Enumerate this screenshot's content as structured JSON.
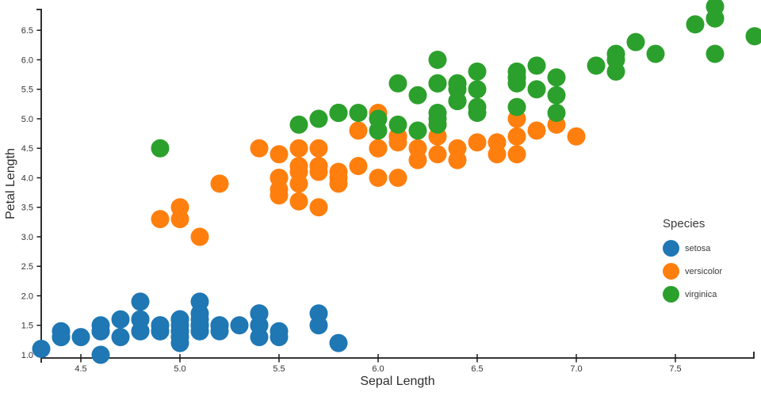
{
  "colors": {
    "background": "#ffffff",
    "axis_line": "#1a1a1a",
    "tick_label": "#333333",
    "axis_title": "#2d2d2d",
    "legend_text": "#3a3a3a"
  },
  "chart_data": {
    "type": "scatter",
    "title": "",
    "xlabel": "Sepal Length",
    "ylabel": "Petal Length",
    "xlim": [
      4.3,
      7.9
    ],
    "ylim": [
      1.0,
      6.9
    ],
    "grid": false,
    "marker_diameter_px": 23,
    "x_ticks": [
      4.5,
      5.0,
      5.5,
      6.0,
      6.5,
      7.0,
      7.5
    ],
    "x_tick_labels": [
      "4.5",
      "5.0",
      "5.5",
      "6.0",
      "6.5",
      "7.0",
      "7.5"
    ],
    "y_ticks": [
      1.0,
      1.5,
      2.0,
      2.5,
      3.0,
      3.5,
      4.0,
      4.5,
      5.0,
      5.5,
      6.0,
      6.5
    ],
    "y_tick_labels": [
      "1.0",
      "1.5",
      "2.0",
      "2.5",
      "3.0",
      "3.5",
      "4.0",
      "4.5",
      "5.0",
      "5.5",
      "6.0",
      "6.5"
    ],
    "legend": {
      "title": "Species",
      "position": "right-inside",
      "entries": [
        "setosa",
        "versicolor",
        "virginica"
      ]
    },
    "series": [
      {
        "name": "setosa",
        "color": "#1f77b4",
        "points": [
          [
            5.1,
            1.4
          ],
          [
            4.9,
            1.4
          ],
          [
            4.7,
            1.3
          ],
          [
            4.6,
            1.5
          ],
          [
            5.0,
            1.4
          ],
          [
            5.4,
            1.7
          ],
          [
            4.6,
            1.4
          ],
          [
            5.0,
            1.5
          ],
          [
            4.4,
            1.4
          ],
          [
            4.9,
            1.5
          ],
          [
            5.4,
            1.5
          ],
          [
            4.8,
            1.6
          ],
          [
            4.8,
            1.4
          ],
          [
            4.3,
            1.1
          ],
          [
            5.8,
            1.2
          ],
          [
            5.7,
            1.5
          ],
          [
            5.4,
            1.3
          ],
          [
            5.1,
            1.4
          ],
          [
            5.7,
            1.7
          ],
          [
            5.1,
            1.5
          ],
          [
            5.4,
            1.7
          ],
          [
            5.1,
            1.5
          ],
          [
            4.6,
            1.0
          ],
          [
            5.1,
            1.7
          ],
          [
            4.8,
            1.9
          ],
          [
            5.0,
            1.6
          ],
          [
            5.0,
            1.6
          ],
          [
            5.2,
            1.5
          ],
          [
            5.2,
            1.4
          ],
          [
            4.7,
            1.6
          ],
          [
            4.8,
            1.6
          ],
          [
            5.4,
            1.5
          ],
          [
            5.2,
            1.5
          ],
          [
            5.5,
            1.4
          ],
          [
            4.9,
            1.5
          ],
          [
            5.0,
            1.2
          ],
          [
            5.5,
            1.3
          ],
          [
            4.9,
            1.4
          ],
          [
            4.4,
            1.3
          ],
          [
            5.1,
            1.5
          ],
          [
            5.0,
            1.3
          ],
          [
            4.5,
            1.3
          ],
          [
            4.4,
            1.3
          ],
          [
            5.0,
            1.6
          ],
          [
            5.1,
            1.9
          ],
          [
            4.8,
            1.4
          ],
          [
            5.1,
            1.6
          ],
          [
            4.6,
            1.4
          ],
          [
            5.3,
            1.5
          ],
          [
            5.0,
            1.4
          ]
        ]
      },
      {
        "name": "versicolor",
        "color": "#ff7f0e",
        "points": [
          [
            7.0,
            4.7
          ],
          [
            6.4,
            4.5
          ],
          [
            6.9,
            4.9
          ],
          [
            5.5,
            4.0
          ],
          [
            6.5,
            4.6
          ],
          [
            5.7,
            4.5
          ],
          [
            6.3,
            4.7
          ],
          [
            4.9,
            3.3
          ],
          [
            6.6,
            4.6
          ],
          [
            5.2,
            3.9
          ],
          [
            5.0,
            3.5
          ],
          [
            5.9,
            4.2
          ],
          [
            6.0,
            4.0
          ],
          [
            6.1,
            4.7
          ],
          [
            5.6,
            3.6
          ],
          [
            6.7,
            4.4
          ],
          [
            5.6,
            4.5
          ],
          [
            5.8,
            4.1
          ],
          [
            6.2,
            4.5
          ],
          [
            5.6,
            3.9
          ],
          [
            5.9,
            4.8
          ],
          [
            6.1,
            4.0
          ],
          [
            6.3,
            4.9
          ],
          [
            6.1,
            4.7
          ],
          [
            6.4,
            4.3
          ],
          [
            6.6,
            4.4
          ],
          [
            6.8,
            4.8
          ],
          [
            6.7,
            5.0
          ],
          [
            6.0,
            4.5
          ],
          [
            5.7,
            3.5
          ],
          [
            5.5,
            3.8
          ],
          [
            5.5,
            3.7
          ],
          [
            5.8,
            3.9
          ],
          [
            6.0,
            5.1
          ],
          [
            5.4,
            4.5
          ],
          [
            6.0,
            4.5
          ],
          [
            6.7,
            4.7
          ],
          [
            6.3,
            4.4
          ],
          [
            5.6,
            4.1
          ],
          [
            5.5,
            4.0
          ],
          [
            5.5,
            4.4
          ],
          [
            6.1,
            4.6
          ],
          [
            5.8,
            4.0
          ],
          [
            5.0,
            3.3
          ],
          [
            5.6,
            4.2
          ],
          [
            5.7,
            4.2
          ],
          [
            5.7,
            4.2
          ],
          [
            6.2,
            4.3
          ],
          [
            5.1,
            3.0
          ],
          [
            5.7,
            4.1
          ]
        ]
      },
      {
        "name": "virginica",
        "color": "#2ca02c",
        "points": [
          [
            6.3,
            6.0
          ],
          [
            5.8,
            5.1
          ],
          [
            7.1,
            5.9
          ],
          [
            6.3,
            5.6
          ],
          [
            6.5,
            5.8
          ],
          [
            7.6,
            6.6
          ],
          [
            4.9,
            4.5
          ],
          [
            7.3,
            6.3
          ],
          [
            6.7,
            5.8
          ],
          [
            7.2,
            6.1
          ],
          [
            6.5,
            5.1
          ],
          [
            6.4,
            5.3
          ],
          [
            6.8,
            5.5
          ],
          [
            5.7,
            5.0
          ],
          [
            5.8,
            5.1
          ],
          [
            6.4,
            5.3
          ],
          [
            6.5,
            5.5
          ],
          [
            7.7,
            6.7
          ],
          [
            7.7,
            6.9
          ],
          [
            6.0,
            5.0
          ],
          [
            6.9,
            5.7
          ],
          [
            5.6,
            4.9
          ],
          [
            7.7,
            6.7
          ],
          [
            6.3,
            4.9
          ],
          [
            6.7,
            5.7
          ],
          [
            7.2,
            6.0
          ],
          [
            6.2,
            4.8
          ],
          [
            6.1,
            4.9
          ],
          [
            6.4,
            5.6
          ],
          [
            7.2,
            5.8
          ],
          [
            7.4,
            6.1
          ],
          [
            7.9,
            6.4
          ],
          [
            6.4,
            5.6
          ],
          [
            6.3,
            5.1
          ],
          [
            6.1,
            5.6
          ],
          [
            7.7,
            6.1
          ],
          [
            6.3,
            5.6
          ],
          [
            6.4,
            5.5
          ],
          [
            6.0,
            4.8
          ],
          [
            6.9,
            5.4
          ],
          [
            6.7,
            5.6
          ],
          [
            6.9,
            5.1
          ],
          [
            5.8,
            5.1
          ],
          [
            6.8,
            5.9
          ],
          [
            6.7,
            5.7
          ],
          [
            6.7,
            5.2
          ],
          [
            6.3,
            5.0
          ],
          [
            6.5,
            5.2
          ],
          [
            6.2,
            5.4
          ],
          [
            5.9,
            5.1
          ]
        ]
      }
    ]
  }
}
